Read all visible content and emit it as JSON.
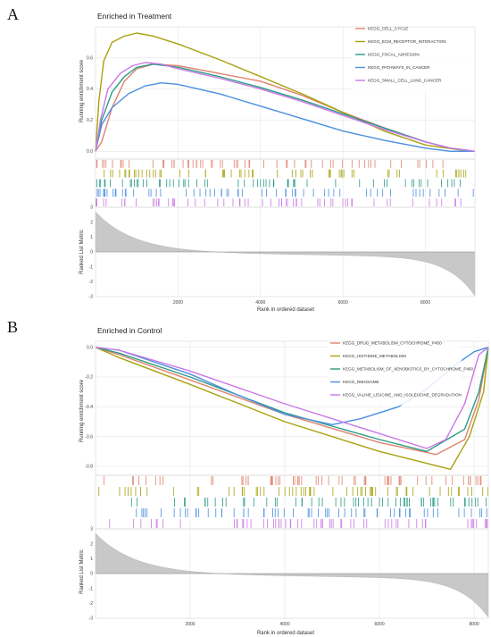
{
  "panels": [
    {
      "letter": "A",
      "title": "Enriched in Treatment"
    },
    {
      "letter": "B",
      "title": "Enriched in Control"
    }
  ],
  "colors": {
    "red": "#e0826e",
    "olive": "#a8a10e",
    "teal": "#2a9a86",
    "blue": "#4a8fe0",
    "purple": "#cb78e6",
    "metric_fill": "#c8c8c8",
    "grid": "#e6e6e6"
  },
  "chart_data": [
    {
      "type": "line",
      "panel": "A",
      "title": "Enriched in Treatment",
      "ylabel": "Running enrichment score",
      "xlabel": "Rank in ordered dataset",
      "metric_ylabel": "Ranked List Metric",
      "x_range": [
        0,
        9200
      ],
      "ylim": [
        -0.05,
        0.8
      ],
      "y_ticks": [
        0.0,
        0.2,
        0.4,
        0.6
      ],
      "metric_ylim": [
        -3,
        3
      ],
      "metric_ticks": [
        3,
        2,
        1,
        0,
        -1,
        -2,
        -3
      ],
      "x_ticks": [
        2000,
        4000,
        6000,
        8000
      ],
      "legend_position": "top-right",
      "series": [
        {
          "name": "KEGG_CELL_CYCLE",
          "color_key": "red",
          "x": [
            0,
            150,
            400,
            700,
            1000,
            1400,
            2000,
            3000,
            4000,
            5000,
            6000,
            7000,
            8000,
            8600,
            9200
          ],
          "y": [
            0.0,
            0.06,
            0.28,
            0.45,
            0.53,
            0.56,
            0.55,
            0.5,
            0.45,
            0.36,
            0.25,
            0.15,
            0.06,
            0.02,
            0.0
          ]
        },
        {
          "name": "KEGG_ECM_RECEPTOR_INTERACTION",
          "color_key": "olive",
          "x": [
            0,
            80,
            200,
            400,
            700,
            1000,
            1400,
            2000,
            3000,
            4000,
            5000,
            6000,
            7000,
            8000,
            8800,
            9200
          ],
          "y": [
            0.0,
            0.32,
            0.58,
            0.7,
            0.74,
            0.76,
            0.74,
            0.69,
            0.59,
            0.48,
            0.37,
            0.25,
            0.13,
            0.04,
            0.01,
            0.0
          ]
        },
        {
          "name": "KEGG_FOCAL_ADHESION",
          "color_key": "teal",
          "x": [
            0,
            150,
            400,
            700,
            1000,
            1400,
            2000,
            3000,
            4000,
            5000,
            6000,
            7000,
            8000,
            8600,
            9200
          ],
          "y": [
            0.0,
            0.2,
            0.38,
            0.48,
            0.54,
            0.56,
            0.54,
            0.48,
            0.41,
            0.33,
            0.24,
            0.15,
            0.06,
            0.02,
            0.0
          ]
        },
        {
          "name": "KEGG_PATHWAYS_IN_CANCER",
          "color_key": "blue",
          "x": [
            0,
            150,
            400,
            800,
            1200,
            1600,
            2000,
            3000,
            4000,
            5000,
            6000,
            7000,
            8000,
            8600,
            9200
          ],
          "y": [
            0.0,
            0.17,
            0.28,
            0.37,
            0.42,
            0.44,
            0.43,
            0.37,
            0.29,
            0.21,
            0.13,
            0.07,
            0.02,
            0.0,
            0.0
          ]
        },
        {
          "name": "KEGG_SMALL_CELL_LUNG_CANCER",
          "color_key": "purple",
          "x": [
            0,
            120,
            300,
            600,
            900,
            1200,
            1600,
            2000,
            3000,
            4000,
            5000,
            6000,
            7000,
            8000,
            8600,
            9200
          ],
          "y": [
            0.0,
            0.2,
            0.4,
            0.5,
            0.55,
            0.57,
            0.56,
            0.53,
            0.47,
            0.4,
            0.32,
            0.23,
            0.14,
            0.06,
            0.02,
            0.0
          ]
        }
      ]
    },
    {
      "type": "line",
      "panel": "B",
      "title": "Enriched in Control",
      "ylabel": "Running enrichment score",
      "xlabel": "Rank in ordered dataset",
      "metric_ylabel": "Ranked List Metric",
      "x_range": [
        0,
        8300
      ],
      "ylim": [
        -0.86,
        0.04
      ],
      "y_ticks": [
        0.0,
        -0.2,
        -0.4,
        -0.6,
        -0.8
      ],
      "metric_ylim": [
        -3,
        3
      ],
      "metric_ticks": [
        3,
        2,
        1,
        0,
        -1,
        -2,
        -3
      ],
      "x_ticks": [
        2000,
        4000,
        6000,
        8000
      ],
      "legend_position": "top-right",
      "series": [
        {
          "name": "KEGG_DRUG_METABOLISM_CYTOCHROME_P450",
          "color_key": "red",
          "x": [
            0,
            500,
            2000,
            4000,
            6000,
            7200,
            7800,
            8100,
            8300
          ],
          "y": [
            0.0,
            -0.05,
            -0.22,
            -0.45,
            -0.64,
            -0.72,
            -0.62,
            -0.35,
            0.0
          ]
        },
        {
          "name": "KEGG_HISTIDINE_METABOLISM",
          "color_key": "olive",
          "x": [
            0,
            500,
            2000,
            4000,
            6000,
            7500,
            7900,
            8200,
            8300
          ],
          "y": [
            0.0,
            -0.07,
            -0.25,
            -0.5,
            -0.7,
            -0.82,
            -0.6,
            -0.3,
            0.0
          ]
        },
        {
          "name": "KEGG_METABOLISM_OF_XENOBIOTICS_BY_CYTOCHROME_P450",
          "color_key": "teal",
          "x": [
            0,
            500,
            2000,
            4000,
            6000,
            7000,
            7800,
            8100,
            8300
          ],
          "y": [
            0.0,
            -0.04,
            -0.2,
            -0.44,
            -0.62,
            -0.7,
            -0.55,
            -0.3,
            0.0
          ]
        },
        {
          "name": "KEGG_RIBOSOME",
          "color_key": "blue",
          "x": [
            0,
            500,
            2000,
            3000,
            4000,
            5000,
            5600,
            6400,
            7000,
            7600,
            8000,
            8300
          ],
          "y": [
            0.0,
            -0.02,
            -0.18,
            -0.32,
            -0.45,
            -0.52,
            -0.48,
            -0.4,
            -0.28,
            -0.12,
            -0.03,
            0.0
          ]
        },
        {
          "name": "KEGG_VALINE_LEUCINE_AND_ISOLEUCINE_DEGRADATION",
          "color_key": "purple",
          "x": [
            0,
            500,
            2000,
            4000,
            6000,
            7000,
            7400,
            7800,
            8100,
            8300
          ],
          "y": [
            0.0,
            -0.02,
            -0.16,
            -0.38,
            -0.58,
            -0.68,
            -0.62,
            -0.38,
            -0.05,
            0.0
          ]
        }
      ]
    }
  ]
}
